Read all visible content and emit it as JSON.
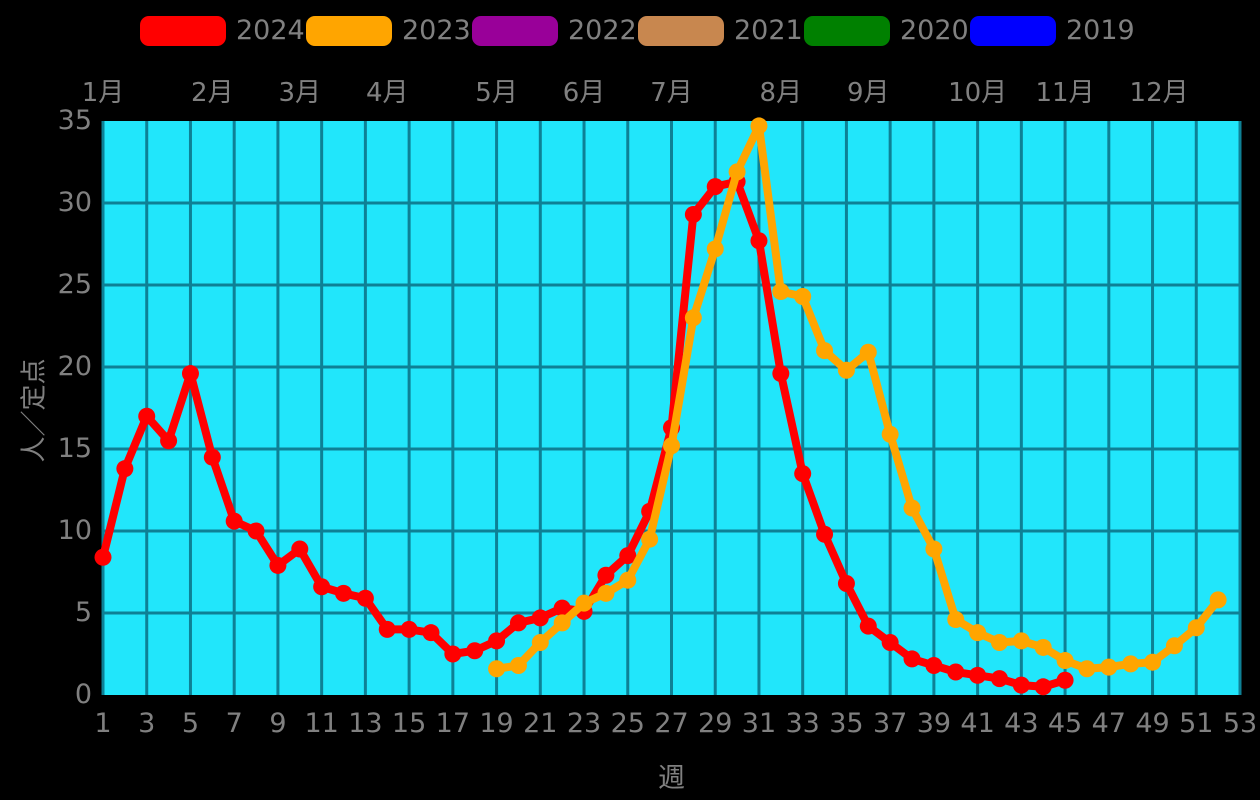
{
  "chart_data": {
    "type": "line",
    "title": "",
    "xlabel": "週",
    "ylabel": "人／定点",
    "xlim": [
      1,
      53
    ],
    "ylim": [
      0,
      35
    ],
    "grid": true,
    "legend_position": "top",
    "x_ticks": [
      1,
      3,
      5,
      7,
      9,
      11,
      13,
      15,
      17,
      19,
      21,
      23,
      25,
      27,
      29,
      31,
      33,
      35,
      37,
      39,
      41,
      43,
      45,
      47,
      49,
      51,
      53
    ],
    "y_ticks": [
      0,
      5,
      10,
      15,
      20,
      25,
      30,
      35
    ],
    "colors": {
      "page_bg": "#000000",
      "plot_bg": "#21e6fb",
      "grid": "#0e8095",
      "text": "#808080"
    },
    "months": [
      {
        "label": "1月",
        "week": 1
      },
      {
        "label": "2月",
        "week": 6
      },
      {
        "label": "3月",
        "week": 10
      },
      {
        "label": "4月",
        "week": 14
      },
      {
        "label": "5月",
        "week": 19
      },
      {
        "label": "6月",
        "week": 23
      },
      {
        "label": "7月",
        "week": 27
      },
      {
        "label": "8月",
        "week": 32
      },
      {
        "label": "9月",
        "week": 36
      },
      {
        "label": "10月",
        "week": 41
      },
      {
        "label": "11月",
        "week": 45
      },
      {
        "label": "12月",
        "week": 49.3
      }
    ],
    "series": [
      {
        "name": "2024",
        "color": "#ff0000",
        "start_week": 1,
        "values": [
          8.4,
          13.8,
          17.0,
          15.5,
          19.6,
          14.5,
          10.6,
          10.0,
          7.9,
          8.9,
          6.6,
          6.2,
          5.9,
          4.0,
          4.0,
          3.8,
          2.5,
          2.7,
          3.3,
          4.4,
          4.7,
          5.3,
          5.1,
          7.3,
          8.5,
          11.2,
          16.3,
          29.3,
          31.0,
          31.3,
          27.7,
          19.6,
          13.5,
          9.8,
          6.8,
          4.2,
          3.2,
          2.2,
          1.8,
          1.4,
          1.2,
          1.0,
          0.6,
          0.5,
          0.9
        ]
      },
      {
        "name": "2023",
        "color": "#ffa500",
        "start_week": 19,
        "values": [
          1.6,
          1.8,
          3.2,
          4.4,
          5.6,
          6.2,
          7.0,
          9.5,
          15.2,
          23.0,
          27.2,
          31.9,
          34.7,
          24.6,
          24.3,
          21.0,
          19.8,
          20.9,
          15.9,
          11.4,
          8.9,
          4.6,
          3.8,
          3.2,
          3.3,
          2.9,
          2.1,
          1.6,
          1.7,
          1.9,
          2.0,
          3.0,
          4.1,
          5.8
        ]
      },
      {
        "name": "2022",
        "color": "#990099",
        "start_week": null,
        "values": []
      },
      {
        "name": "2021",
        "color": "#c8874f",
        "start_week": null,
        "values": []
      },
      {
        "name": "2020",
        "color": "#008000",
        "start_week": null,
        "values": []
      },
      {
        "name": "2019",
        "color": "#0000ff",
        "start_week": null,
        "values": []
      }
    ]
  }
}
